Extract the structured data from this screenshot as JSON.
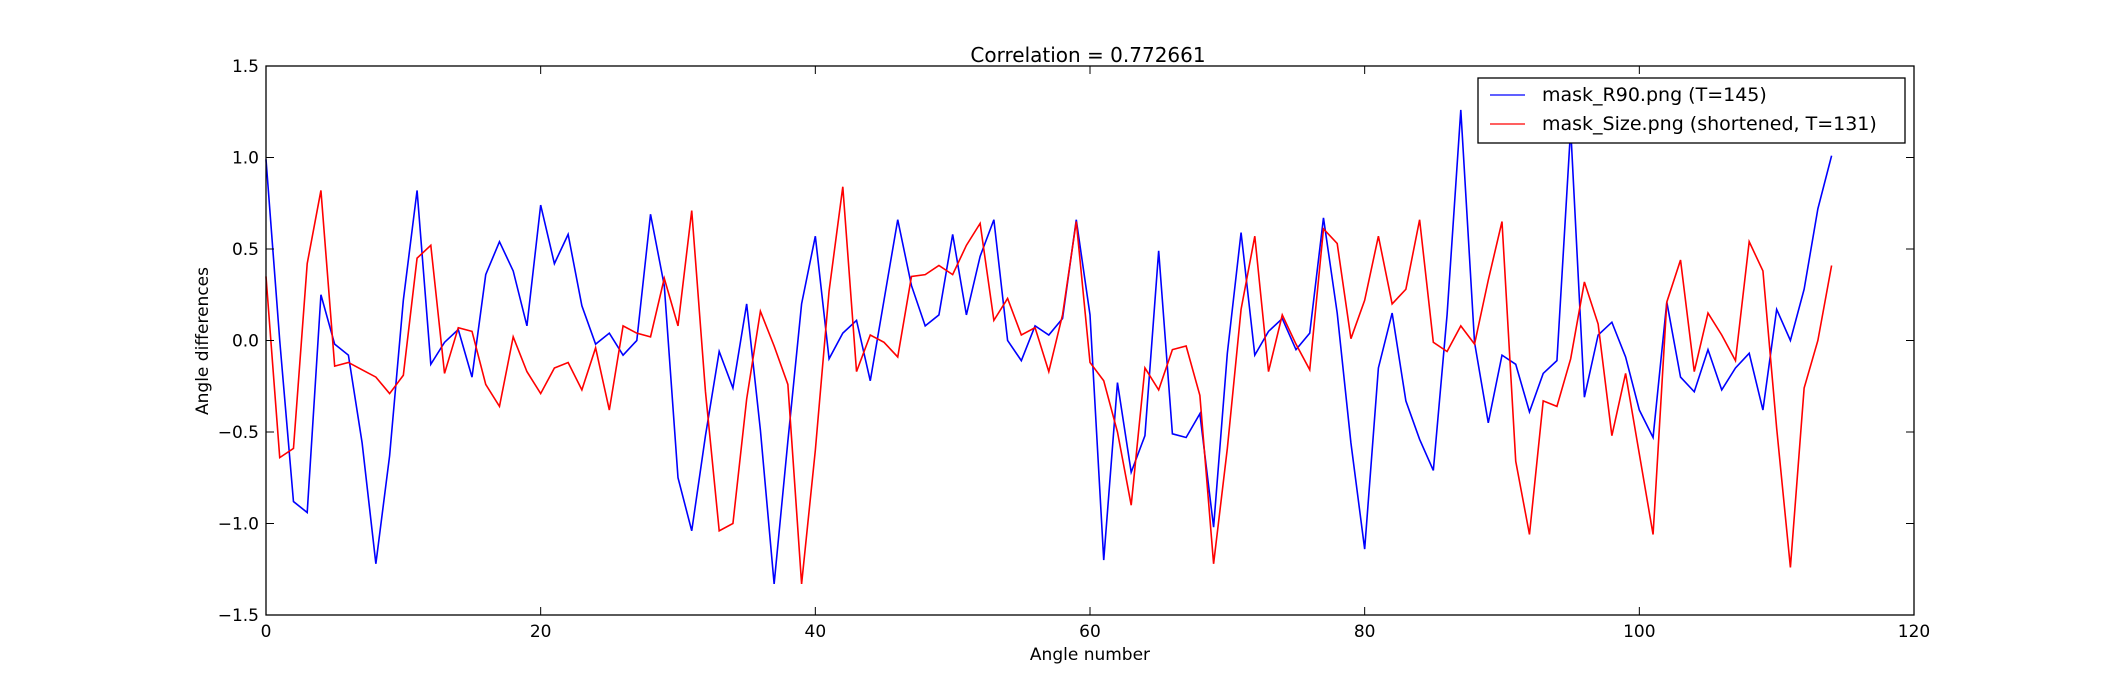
{
  "chart_data": {
    "type": "line",
    "title": "Correlation = 0.772661",
    "xlabel": "Angle number",
    "ylabel": "Angle differences",
    "xlim": [
      0,
      120
    ],
    "ylim": [
      -1.5,
      1.5
    ],
    "xticks": [
      0,
      20,
      40,
      60,
      80,
      100,
      120
    ],
    "xtick_labels": [
      "0",
      "20",
      "40",
      "60",
      "80",
      "100",
      "120"
    ],
    "yticks": [
      -1.5,
      -1.0,
      -0.5,
      0.0,
      0.5,
      1.0,
      1.5
    ],
    "ytick_labels": [
      "−1.5",
      "−1.0",
      "−0.5",
      "0.0",
      "0.5",
      "1.0",
      "1.5"
    ],
    "grid": false,
    "legend_position": "top-right",
    "series": [
      {
        "name": "mask_R90.png (T=145)",
        "color": "#0000ff",
        "x": [
          0,
          1,
          2,
          3,
          4,
          5,
          6,
          7,
          8,
          9,
          10,
          11,
          12,
          13,
          14,
          15,
          16,
          17,
          18,
          19,
          20,
          21,
          22,
          23,
          24,
          25,
          26,
          27,
          28,
          29,
          30,
          31,
          32,
          33,
          34,
          35,
          36,
          37,
          38,
          39,
          40,
          41,
          42,
          43,
          44,
          45,
          46,
          47,
          48,
          49,
          50,
          51,
          52,
          53,
          54,
          55,
          56,
          57,
          58,
          59,
          60,
          61,
          62,
          63,
          64,
          65,
          66,
          67,
          68,
          69,
          70,
          71,
          72,
          73,
          74,
          75,
          76,
          77,
          78,
          79,
          80,
          81,
          82,
          83,
          84,
          85,
          86,
          87,
          88,
          89,
          90,
          91,
          92,
          93,
          94,
          95,
          96,
          97,
          98,
          99,
          100,
          101,
          102,
          103,
          104,
          105,
          106,
          107,
          108,
          109,
          110,
          111,
          112,
          113,
          114
        ],
        "y": [
          0.99,
          0.0,
          -0.88,
          -0.94,
          0.25,
          -0.02,
          -0.08,
          -0.56,
          -1.22,
          -0.63,
          0.22,
          0.82,
          -0.13,
          -0.01,
          0.06,
          -0.2,
          0.36,
          0.54,
          0.38,
          0.08,
          0.74,
          0.42,
          0.58,
          0.19,
          -0.02,
          0.04,
          -0.08,
          0.0,
          0.69,
          0.3,
          -0.75,
          -1.04,
          -0.52,
          -0.06,
          -0.26,
          0.2,
          -0.49,
          -1.33,
          -0.55,
          0.2,
          0.57,
          -0.1,
          0.04,
          0.11,
          -0.22,
          0.22,
          0.66,
          0.3,
          0.08,
          0.14,
          0.58,
          0.14,
          0.46,
          0.66,
          0.0,
          -0.11,
          0.08,
          0.03,
          0.12,
          0.66,
          0.14,
          -1.2,
          -0.23,
          -0.72,
          -0.52,
          0.49,
          -0.51,
          -0.53,
          -0.4,
          -1.02,
          -0.07,
          0.59,
          -0.08,
          0.05,
          0.12,
          -0.05,
          0.04,
          0.67,
          0.15,
          -0.56,
          -1.14,
          -0.15,
          0.15,
          -0.33,
          -0.54,
          -0.71,
          0.14,
          1.26,
          -0.01,
          -0.45,
          -0.08,
          -0.13,
          -0.39,
          -0.18,
          -0.11,
          1.16,
          -0.31,
          0.03,
          0.1,
          -0.09,
          -0.38,
          -0.53,
          0.21,
          -0.2,
          -0.28,
          -0.05,
          -0.27,
          -0.15,
          -0.07,
          -0.38,
          0.17,
          0.0,
          0.28,
          0.72,
          1.01
        ]
      },
      {
        "name": "mask_Size.png (shortened, T=131)",
        "color": "#ff0000",
        "x": [
          0,
          1,
          2,
          3,
          4,
          5,
          6,
          7,
          8,
          9,
          10,
          11,
          12,
          13,
          14,
          15,
          16,
          17,
          18,
          19,
          20,
          21,
          22,
          23,
          24,
          25,
          26,
          27,
          28,
          29,
          30,
          31,
          32,
          33,
          34,
          35,
          36,
          37,
          38,
          39,
          40,
          41,
          42,
          43,
          44,
          45,
          46,
          47,
          48,
          49,
          50,
          51,
          52,
          53,
          54,
          55,
          56,
          57,
          58,
          59,
          60,
          61,
          62,
          63,
          64,
          65,
          66,
          67,
          68,
          69,
          70,
          71,
          72,
          73,
          74,
          75,
          76,
          77,
          78,
          79,
          80,
          81,
          82,
          83,
          84,
          85,
          86,
          87,
          88,
          89,
          90,
          91,
          92,
          93,
          94,
          95,
          96,
          97,
          98,
          99,
          100,
          101,
          102,
          103,
          104,
          105,
          106,
          107,
          108,
          109,
          110,
          111,
          112,
          113,
          114
        ],
        "y": [
          0.35,
          -0.64,
          -0.59,
          0.42,
          0.82,
          -0.14,
          -0.12,
          -0.16,
          -0.2,
          -0.29,
          -0.19,
          0.45,
          0.52,
          -0.18,
          0.07,
          0.05,
          -0.24,
          -0.36,
          0.02,
          -0.17,
          -0.29,
          -0.15,
          -0.12,
          -0.27,
          -0.04,
          -0.38,
          0.08,
          0.04,
          0.02,
          0.34,
          0.08,
          0.71,
          -0.28,
          -1.04,
          -1.0,
          -0.32,
          0.16,
          -0.03,
          -0.24,
          -1.33,
          -0.6,
          0.27,
          0.84,
          -0.17,
          0.03,
          -0.01,
          -0.09,
          0.35,
          0.36,
          0.41,
          0.36,
          0.52,
          0.64,
          0.11,
          0.23,
          0.03,
          0.07,
          -0.17,
          0.14,
          0.65,
          -0.12,
          -0.22,
          -0.5,
          -0.9,
          -0.15,
          -0.27,
          -0.05,
          -0.03,
          -0.3,
          -1.22,
          -0.59,
          0.17,
          0.57,
          -0.17,
          0.14,
          -0.02,
          -0.16,
          0.61,
          0.53,
          0.01,
          0.22,
          0.57,
          0.2,
          0.28,
          0.66,
          -0.01,
          -0.06,
          0.08,
          -0.02,
          0.33,
          0.65,
          -0.66,
          -1.06,
          -0.33,
          -0.36,
          -0.1,
          0.32,
          0.09,
          -0.52,
          -0.18,
          -0.62,
          -1.06,
          0.21,
          0.44,
          -0.17,
          0.15,
          0.03,
          -0.11,
          0.54,
          0.38,
          -0.48,
          -1.24,
          -0.26,
          0.0,
          0.41
        ]
      }
    ]
  }
}
